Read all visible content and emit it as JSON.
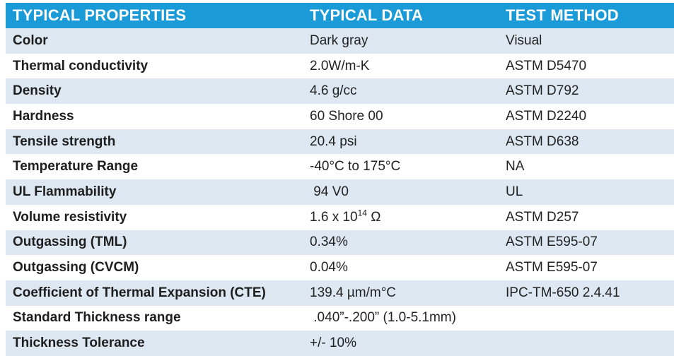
{
  "header": {
    "col1": "TYPICAL PROPERTIES",
    "col2": "TYPICAL DATA",
    "col3": "TEST METHOD"
  },
  "rows": [
    {
      "property": "Color",
      "data": "Dark gray",
      "method": "Visual"
    },
    {
      "property": "Thermal conductivity",
      "data": "2.0W/m-K",
      "method": "ASTM D5470"
    },
    {
      "property": "Density",
      "data": "4.6 g/cc",
      "method": "ASTM D792"
    },
    {
      "property": "Hardness",
      "data": "60 Shore 00",
      "method": "ASTM D2240"
    },
    {
      "property": "Tensile strength",
      "data": "20.4 psi",
      "method": "ASTM D638"
    },
    {
      "property": "Temperature Range",
      "data": "-40°C to 175°C",
      "method": "NA"
    },
    {
      "property": "UL Flammability",
      "data": " 94 V0",
      "method": "UL"
    },
    {
      "property": "Volume resistivity",
      "data_base": "1.6 x 10",
      "data_exp": "14",
      "data_unit": " Ω",
      "method": "ASTM D257"
    },
    {
      "property": "Outgassing (TML)",
      "data": "0.34%",
      "method": "ASTM E595-07"
    },
    {
      "property": "Outgassing (CVCM)",
      "data": "0.04%",
      "method": "ASTM E595-07"
    },
    {
      "property": "Coefficient of Thermal Expansion (CTE)",
      "data": "139.4 µm/m°C",
      "method": "IPC-TM-650 2.4.41"
    },
    {
      "property": "Standard Thickness range",
      "data": " .040”-.200” (1.0-5.1mm)",
      "method": ""
    },
    {
      "property": "Thickness Tolerance",
      "data": "+/- 10%",
      "method": ""
    }
  ],
  "colors": {
    "header_bg": "#1a9ad6",
    "stripe_bg": "#dde8f3"
  }
}
